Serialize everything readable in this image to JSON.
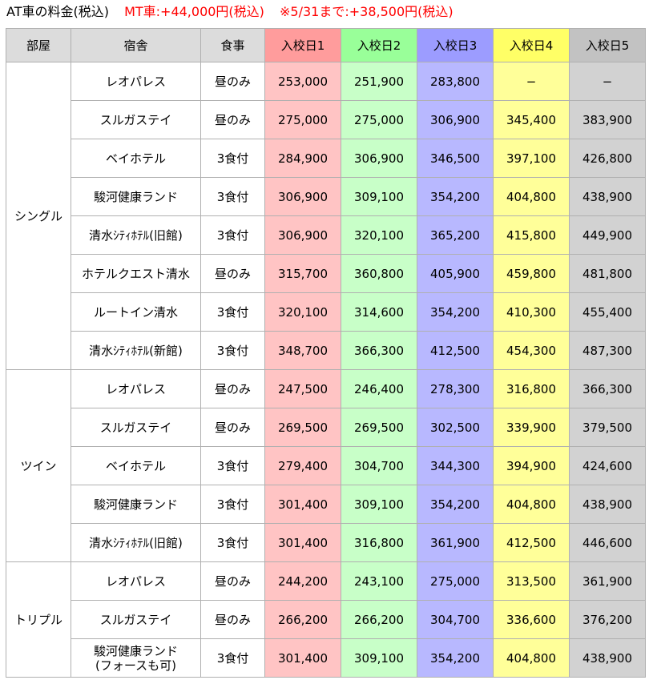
{
  "header": {
    "title": "AT車の料金(税込)",
    "mt_note": "MT車:+44,000円(税込)",
    "early_note": "※5/31まで:+38,500円(税込)"
  },
  "columns": [
    "部屋",
    "宿舎",
    "食事",
    "入校日1",
    "入校日2",
    "入校日3",
    "入校日4",
    "入校日5"
  ],
  "colors": {
    "day1": "#ffc4c4",
    "day2": "#c8ffc8",
    "day3": "#b8b8ff",
    "day4": "#ffff99",
    "day5": "#d2d2d2",
    "header_red": "#ff0000"
  },
  "groups": [
    {
      "room": "シングル",
      "rows": [
        {
          "hotel": [
            "レオパレス"
          ],
          "meal": "昼のみ",
          "prices": [
            "253,000",
            "251,900",
            "283,800",
            "−",
            "−"
          ]
        },
        {
          "hotel": [
            "スルガステイ"
          ],
          "meal": "昼のみ",
          "prices": [
            "275,000",
            "275,000",
            "306,900",
            "345,400",
            "383,900"
          ]
        },
        {
          "hotel": [
            "ベイホテル"
          ],
          "meal": "3食付",
          "prices": [
            "284,900",
            "306,900",
            "346,500",
            "397,100",
            "426,800"
          ]
        },
        {
          "hotel": [
            "駿河健康ランド"
          ],
          "meal": "3食付",
          "prices": [
            "306,900",
            "309,100",
            "354,200",
            "404,800",
            "438,900"
          ]
        },
        {
          "hotel": [
            "清水ｼﾃｨﾎﾃﾙ(旧館)"
          ],
          "meal": "3食付",
          "prices": [
            "306,900",
            "320,100",
            "365,200",
            "415,800",
            "449,900"
          ]
        },
        {
          "hotel": [
            "ホテルクエスト清水"
          ],
          "meal": "昼のみ",
          "prices": [
            "315,700",
            "360,800",
            "405,900",
            "459,800",
            "481,800"
          ]
        },
        {
          "hotel": [
            "ルートイン清水"
          ],
          "meal": "3食付",
          "prices": [
            "320,100",
            "314,600",
            "354,200",
            "410,300",
            "455,400"
          ]
        },
        {
          "hotel": [
            "清水ｼﾃｨﾎﾃﾙ(新館)"
          ],
          "meal": "3食付",
          "prices": [
            "348,700",
            "366,300",
            "412,500",
            "454,300",
            "487,300"
          ]
        }
      ]
    },
    {
      "room": "ツイン",
      "rows": [
        {
          "hotel": [
            "レオパレス"
          ],
          "meal": "昼のみ",
          "prices": [
            "247,500",
            "246,400",
            "278,300",
            "316,800",
            "366,300"
          ]
        },
        {
          "hotel": [
            "スルガステイ"
          ],
          "meal": "昼のみ",
          "prices": [
            "269,500",
            "269,500",
            "302,500",
            "339,900",
            "379,500"
          ]
        },
        {
          "hotel": [
            "ベイホテル"
          ],
          "meal": "3食付",
          "prices": [
            "279,400",
            "304,700",
            "344,300",
            "394,900",
            "424,600"
          ]
        },
        {
          "hotel": [
            "駿河健康ランド"
          ],
          "meal": "3食付",
          "prices": [
            "301,400",
            "309,100",
            "354,200",
            "404,800",
            "438,900"
          ]
        },
        {
          "hotel": [
            "清水ｼﾃｨﾎﾃﾙ(旧館)"
          ],
          "meal": "3食付",
          "prices": [
            "301,400",
            "316,800",
            "361,900",
            "412,500",
            "446,600"
          ]
        }
      ]
    },
    {
      "room": "トリプル",
      "rows": [
        {
          "hotel": [
            "レオパレス"
          ],
          "meal": "昼のみ",
          "prices": [
            "244,200",
            "243,100",
            "275,000",
            "313,500",
            "361,900"
          ]
        },
        {
          "hotel": [
            "スルガステイ"
          ],
          "meal": "昼のみ",
          "prices": [
            "266,200",
            "266,200",
            "304,700",
            "336,600",
            "376,200"
          ]
        },
        {
          "hotel": [
            "駿河健康ランド",
            "(フォースも可)"
          ],
          "meal": "3食付",
          "prices": [
            "301,400",
            "309,100",
            "354,200",
            "404,800",
            "438,900"
          ]
        }
      ]
    }
  ]
}
